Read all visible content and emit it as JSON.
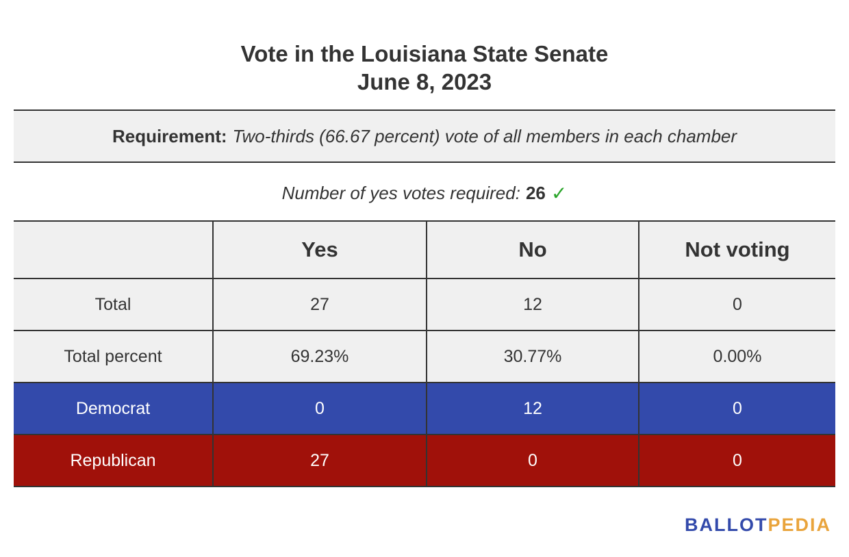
{
  "chart_data": {
    "type": "table",
    "title": "Vote in the Louisiana State Senate",
    "subtitle": "June 8, 2023",
    "requirement": {
      "label": "Requirement:",
      "text": "Two-thirds (66.67 percent) vote of all members in each chamber"
    },
    "votes_required": {
      "label": "Number of yes votes required:",
      "value": "26",
      "mark": "✓"
    },
    "columns": [
      "",
      "Yes",
      "No",
      "Not voting"
    ],
    "rows": [
      {
        "label": "Total",
        "values": [
          "27",
          "12",
          "0"
        ]
      },
      {
        "label": "Total percent",
        "values": [
          "69.23%",
          "30.77%",
          "0.00%"
        ]
      },
      {
        "label": "Democrat",
        "values": [
          "0",
          "12",
          "0"
        ]
      },
      {
        "label": "Republican",
        "values": [
          "27",
          "0",
          "0"
        ]
      }
    ],
    "colors": {
      "neutral_bg": "#f0f0f0",
      "democrat_bg": "#334aab",
      "republican_bg": "#a0110a",
      "check": "#2aa52a"
    }
  },
  "logo": {
    "part1": "BALLOT",
    "part2": "PEDIA",
    "color1": "#334aab",
    "color2": "#e9a43c"
  }
}
